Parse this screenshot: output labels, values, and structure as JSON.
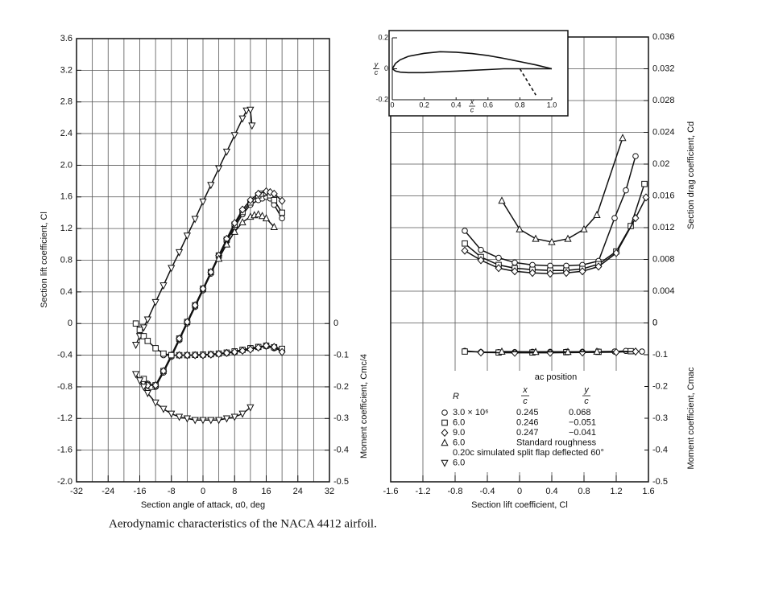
{
  "caption": "Aerodynamic characteristics of the NACA 4412 airfoil.",
  "chart_data": [
    {
      "type": "line",
      "xlabel": "Section angle of attack, α0, deg",
      "ylabel": "Section lift coefficient, Cl",
      "y2label": "Moment coefficient, Cmc/4",
      "xlim": [
        -32,
        32
      ],
      "xticks": [
        -32,
        -24,
        -16,
        -8,
        0,
        8,
        16,
        24,
        32
      ],
      "xgrid": [
        -28,
        -24,
        -20,
        -16,
        -12,
        -8,
        -4,
        0,
        4,
        8,
        12,
        16,
        20,
        24,
        28
      ],
      "ylim": [
        -2,
        3.6
      ],
      "yticks": [
        {
          "value": -2,
          "label": "-2.0"
        },
        -1.6,
        -1.2,
        -0.8,
        -0.4,
        0,
        0.4,
        0.8,
        1.2,
        1.6,
        {
          "value": 2,
          "label": "2.0"
        },
        2.4,
        2.8,
        3.2,
        3.6
      ],
      "y2lim": [
        -0.5,
        0.9
      ],
      "y2ticks": [
        0,
        -0.1,
        -0.2,
        -0.3,
        -0.4,
        -0.5
      ],
      "grid": true,
      "series": [
        {
          "marker": "circle",
          "x": [
            -14,
            -12,
            -10,
            -8,
            -6,
            -4,
            -2,
            0,
            2,
            4,
            6,
            8,
            10,
            12,
            14,
            15,
            16,
            17,
            18,
            20
          ],
          "values": [
            -0.76,
            -0.8,
            -0.62,
            -0.42,
            -0.21,
            0,
            0.21,
            0.42,
            0.63,
            0.84,
            1.04,
            1.22,
            1.38,
            1.5,
            1.56,
            1.58,
            1.6,
            1.58,
            1.5,
            1.33
          ]
        },
        {
          "marker": "square",
          "x": [
            -15,
            -14,
            -13,
            -12,
            -10,
            -8,
            -6,
            -4,
            -2,
            0,
            2,
            4,
            6,
            8,
            10,
            12,
            14,
            15,
            16,
            17,
            18,
            20
          ],
          "values": [
            -0.7,
            -0.78,
            -0.8,
            -0.78,
            -0.6,
            -0.4,
            -0.19,
            0.02,
            0.23,
            0.44,
            0.65,
            0.86,
            1.06,
            1.25,
            1.41,
            1.53,
            1.62,
            1.64,
            1.65,
            1.62,
            1.56,
            1.4
          ]
        },
        {
          "marker": "diamond",
          "x": [
            -14,
            -12,
            -10,
            -8,
            -6,
            -4,
            -2,
            0,
            2,
            4,
            6,
            8,
            10,
            12,
            14,
            16,
            17,
            18,
            20
          ],
          "values": [
            -0.78,
            -0.78,
            -0.6,
            -0.4,
            -0.19,
            0.02,
            0.23,
            0.44,
            0.65,
            0.86,
            1.07,
            1.27,
            1.44,
            1.56,
            1.64,
            1.67,
            1.66,
            1.64,
            1.55
          ]
        },
        {
          "marker": "triangle",
          "x": [
            4,
            6,
            8,
            10,
            12,
            13,
            14,
            15,
            16,
            18
          ],
          "values": [
            0.82,
            1.0,
            1.16,
            1.28,
            1.35,
            1.37,
            1.38,
            1.36,
            1.33,
            1.22
          ]
        },
        {
          "marker": "triangle-down",
          "x": [
            -17,
            -16,
            -15,
            -14,
            -12,
            -10,
            -8,
            -6,
            -4,
            -2,
            0,
            2,
            4,
            6,
            8,
            10,
            11,
            12,
            12.4
          ],
          "values": [
            -0.27,
            -0.16,
            -0.05,
            0.05,
            0.27,
            0.48,
            0.7,
            0.9,
            1.11,
            1.32,
            1.54,
            1.75,
            1.96,
            2.17,
            2.38,
            2.59,
            2.69,
            2.7,
            2.5
          ]
        },
        {
          "marker": "circle",
          "axis": "y2",
          "x": [
            -10,
            -8,
            -6,
            -4,
            -2,
            0,
            2,
            4,
            6,
            8,
            10,
            12,
            14,
            16,
            18,
            20
          ],
          "values": [
            -0.1,
            -0.1,
            -0.1,
            -0.1,
            -0.1,
            -0.1,
            -0.098,
            -0.096,
            -0.094,
            -0.09,
            -0.085,
            -0.08,
            -0.075,
            -0.072,
            -0.078,
            -0.085
          ]
        },
        {
          "marker": "square",
          "axis": "y2",
          "x": [
            -17,
            -16,
            -15,
            -14,
            -12,
            -10,
            -8,
            -6,
            -4,
            -2,
            0,
            2,
            4,
            6,
            8,
            10,
            12,
            14,
            16,
            18,
            20
          ],
          "values": [
            0,
            -0.02,
            -0.04,
            -0.055,
            -0.078,
            -0.095,
            -0.1,
            -0.1,
            -0.1,
            -0.099,
            -0.098,
            -0.097,
            -0.095,
            -0.092,
            -0.088,
            -0.083,
            -0.078,
            -0.074,
            -0.07,
            -0.075,
            -0.08
          ]
        },
        {
          "marker": "diamond",
          "axis": "y2",
          "x": [
            -6,
            -4,
            -2,
            0,
            2,
            4,
            6,
            8,
            10,
            12,
            14,
            16,
            18,
            20
          ],
          "values": [
            -0.1,
            -0.1,
            -0.1,
            -0.1,
            -0.098,
            -0.096,
            -0.093,
            -0.09,
            -0.086,
            -0.082,
            -0.076,
            -0.07,
            -0.074,
            -0.09
          ]
        },
        {
          "marker": "triangle-down",
          "axis": "y2",
          "x": [
            -17,
            -16,
            -15,
            -14,
            -12,
            -10,
            -8,
            -6,
            -4,
            -2,
            0,
            2,
            4,
            6,
            8,
            10,
            12
          ],
          "values": [
            -0.16,
            -0.18,
            -0.2,
            -0.22,
            -0.25,
            -0.27,
            -0.285,
            -0.295,
            -0.3,
            -0.305,
            -0.305,
            -0.305,
            -0.305,
            -0.3,
            -0.295,
            -0.285,
            -0.265
          ]
        }
      ]
    },
    {
      "type": "line",
      "xlabel": "Section lift coefficient, Cl",
      "ylabel": "Section drag coefficient, Cd",
      "y2label": "Moment coefficient, Cmac",
      "xlim": [
        -1.6,
        1.6
      ],
      "xticks": [
        -1.6,
        -1.2,
        -0.8,
        -0.4,
        0,
        0.4,
        0.8,
        1.2,
        1.6
      ],
      "ylim": [
        -0.02,
        0.036
      ],
      "yticks": [
        0,
        0.004,
        0.008,
        0.012,
        0.016,
        0.02,
        0.024,
        0.028,
        0.032,
        0.036
      ],
      "y2lim": [
        -0.5,
        0.9
      ],
      "y2ticks": [
        0,
        -0.1,
        -0.2,
        -0.3,
        -0.4,
        -0.5
      ],
      "grid": true,
      "series": [
        {
          "marker": "circle",
          "x": [
            -0.68,
            -0.48,
            -0.26,
            -0.06,
            0.16,
            0.38,
            0.58,
            0.78,
            0.98,
            1.18,
            1.32,
            1.44
          ],
          "values": [
            0.0116,
            0.0092,
            0.0082,
            0.0076,
            0.0073,
            0.0072,
            0.0072,
            0.0073,
            0.0078,
            0.0132,
            0.0167,
            0.021
          ]
        },
        {
          "marker": "square",
          "x": [
            -0.68,
            -0.48,
            -0.26,
            -0.06,
            0.16,
            0.38,
            0.58,
            0.78,
            0.98,
            1.2,
            1.38,
            1.55
          ],
          "values": [
            0.01,
            0.0083,
            0.0073,
            0.0069,
            0.0067,
            0.0066,
            0.0066,
            0.0068,
            0.0074,
            0.009,
            0.0122,
            0.0175
          ]
        },
        {
          "marker": "diamond",
          "x": [
            -0.68,
            -0.48,
            -0.26,
            -0.06,
            0.16,
            0.38,
            0.58,
            0.78,
            0.98,
            1.2,
            1.44,
            1.57
          ],
          "values": [
            0.0091,
            0.0079,
            0.0069,
            0.0065,
            0.0063,
            0.0062,
            0.0063,
            0.0065,
            0.0071,
            0.0088,
            0.0132,
            0.0158
          ]
        },
        {
          "marker": "triangle",
          "x": [
            -0.22,
            0,
            0.2,
            0.4,
            0.6,
            0.8,
            0.96,
            1.28
          ],
          "values": [
            0.0154,
            0.0118,
            0.0106,
            0.0102,
            0.0106,
            0.0118,
            0.0136,
            0.0233
          ]
        },
        {
          "marker": "circle",
          "axis": "y2",
          "x": [
            -0.68,
            -0.48,
            -0.26,
            -0.06,
            0.16,
            0.38,
            0.58,
            0.78,
            0.98,
            1.18,
            1.32,
            1.52
          ],
          "values": [
            -0.088,
            -0.092,
            -0.092,
            -0.092,
            -0.091,
            -0.091,
            -0.091,
            -0.091,
            -0.09,
            -0.09,
            -0.088,
            -0.09
          ]
        },
        {
          "marker": "square",
          "axis": "y2",
          "x": [
            -0.68,
            -0.26,
            0.16,
            0.58,
            0.98,
            1.38
          ],
          "values": [
            -0.09,
            -0.093,
            -0.093,
            -0.092,
            -0.091,
            -0.089
          ]
        },
        {
          "marker": "diamond",
          "axis": "y2",
          "x": [
            -0.48,
            -0.06,
            0.38,
            0.78,
            1.2,
            1.44
          ],
          "values": [
            -0.093,
            -0.094,
            -0.094,
            -0.093,
            -0.092,
            -0.09
          ]
        },
        {
          "marker": "triangle",
          "axis": "y2",
          "x": [
            -0.22,
            0.2,
            0.6,
            0.96
          ],
          "values": [
            -0.09,
            -0.091,
            -0.091,
            -0.09
          ]
        }
      ],
      "legend": {
        "title": "ac position",
        "columns": [
          "R",
          [
            "x",
            "c"
          ],
          [
            "y",
            "c"
          ]
        ],
        "rows": [
          {
            "marker": "circle",
            "cells": [
              "3.0 × 10⁶",
              "0.245",
              "0.068"
            ]
          },
          {
            "marker": "square",
            "cells": [
              "6.0",
              "0.246",
              "−0.051"
            ]
          },
          {
            "marker": "diamond",
            "cells": [
              "9.0",
              "0.247",
              "−0.041"
            ]
          },
          {
            "marker": "triangle",
            "cells": [
              "6.0",
              "Standard roughness"
            ]
          },
          {
            "cells": [
              "0.20c simulated split flap deflected 60°"
            ]
          },
          {
            "marker": "triangle-down",
            "cells": [
              "6.0"
            ]
          }
        ]
      }
    },
    {
      "type": "line",
      "xlabel": [
        "x",
        "c"
      ],
      "ylabel": [
        "y",
        "c"
      ],
      "xlim": [
        0,
        1
      ],
      "xticks": [
        0,
        0.2,
        0.4,
        0.6,
        0.8,
        {
          "value": 1,
          "label": "1.0"
        }
      ],
      "ylim": [
        -0.2,
        0.2
      ],
      "yticks": [
        0.2,
        0,
        -0.2
      ],
      "series": [
        {
          "x": [
            0,
            0.02,
            0.05,
            0.1,
            0.2,
            0.3,
            0.4,
            0.5,
            0.6,
            0.7,
            0.8,
            0.9,
            1.0
          ],
          "values": [
            0,
            0.035,
            0.058,
            0.08,
            0.1,
            0.11,
            0.107,
            0.098,
            0.085,
            0.067,
            0.046,
            0.025,
            0
          ]
        },
        {
          "x": [
            0,
            0.02,
            0.05,
            0.1,
            0.2,
            0.3,
            0.4,
            0.5,
            0.6,
            0.7,
            0.8,
            0.9,
            1.0
          ],
          "values": [
            0,
            -0.015,
            -0.022,
            -0.025,
            -0.025,
            -0.02,
            -0.015,
            -0.01,
            -0.005,
            0,
            0,
            0,
            0
          ]
        },
        {
          "dash": true,
          "x": [
            0.8,
            0.9
          ],
          "values": [
            0,
            -0.17
          ]
        }
      ]
    }
  ]
}
